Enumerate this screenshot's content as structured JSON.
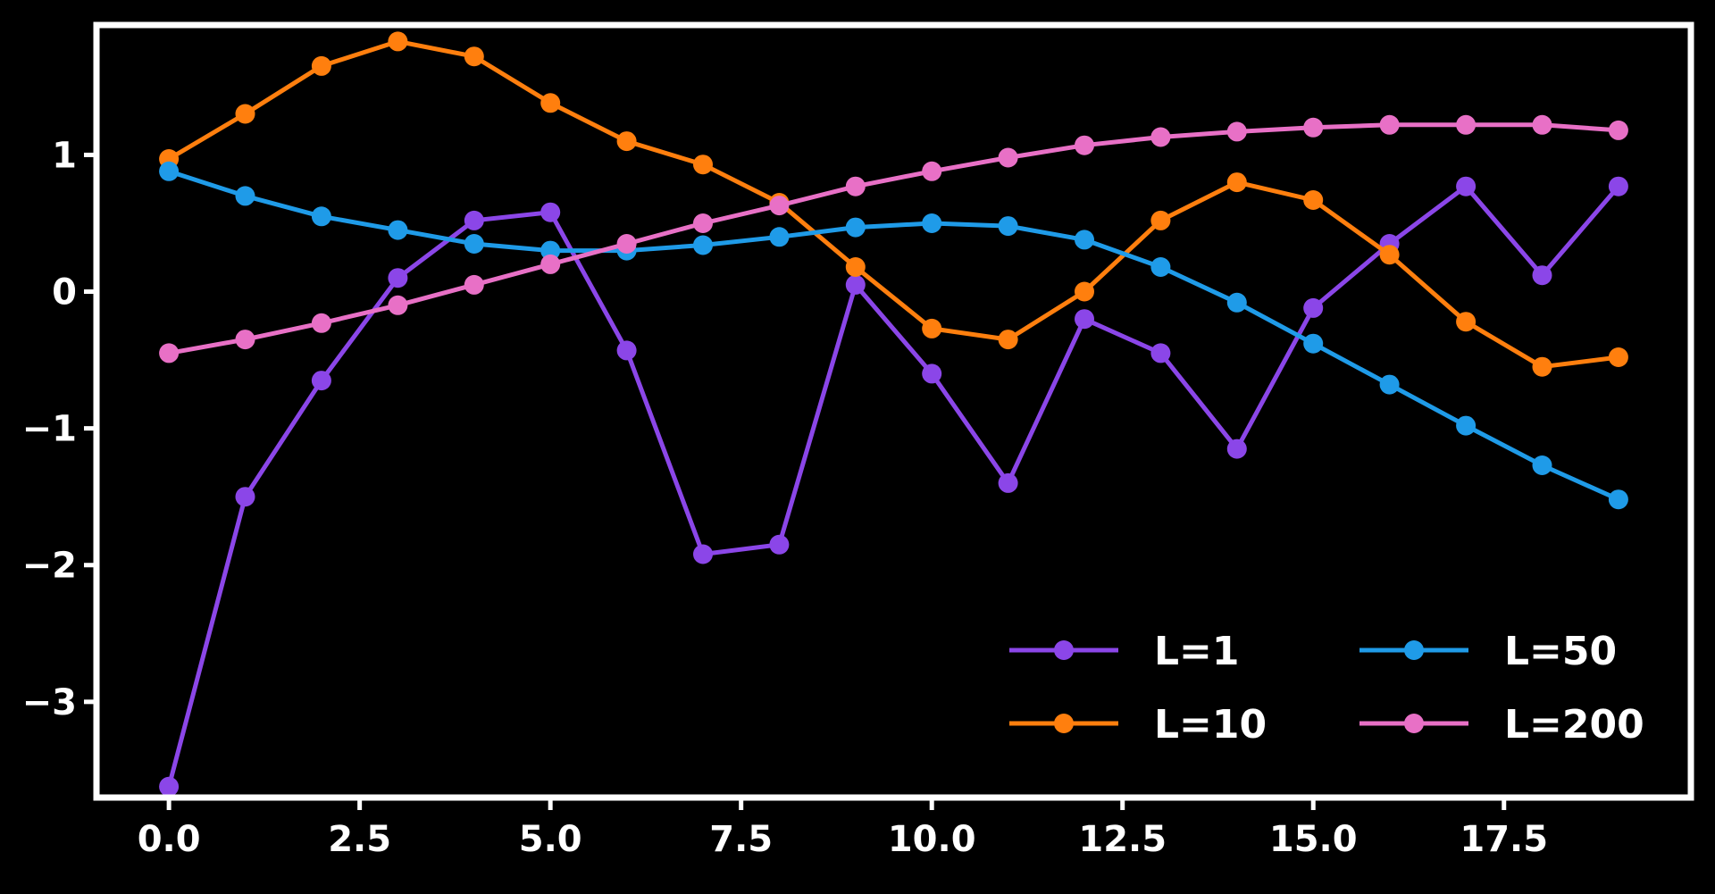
{
  "chart_data": {
    "type": "line",
    "title": "",
    "xlabel": "",
    "ylabel": "",
    "xlim": [
      -0.95,
      19.95
    ],
    "ylim": [
      -3.7,
      1.95
    ],
    "x_ticks": [
      0.0,
      2.5,
      5.0,
      7.5,
      10.0,
      12.5,
      15.0,
      17.5
    ],
    "x_tick_labels": [
      "0.0",
      "2.5",
      "5.0",
      "7.5",
      "10.0",
      "12.5",
      "15.0",
      "17.5"
    ],
    "y_ticks": [
      -3,
      -2,
      -1,
      0,
      1
    ],
    "y_tick_labels": [
      "−3",
      "−2",
      "−1",
      "0",
      "1"
    ],
    "grid": false,
    "legend": {
      "placement": "lower-right",
      "columns": 2
    },
    "x": [
      0,
      1,
      2,
      3,
      4,
      5,
      6,
      7,
      8,
      9,
      10,
      11,
      12,
      13,
      14,
      15,
      16,
      17,
      18,
      19
    ],
    "series": [
      {
        "name": "L=1",
        "color": "#8b46e8",
        "values": [
          -3.62,
          -1.5,
          -0.65,
          0.1,
          0.52,
          0.58,
          -0.43,
          -1.92,
          -1.85,
          0.05,
          -0.6,
          -1.4,
          -0.2,
          -0.45,
          -1.15,
          -0.12,
          0.35,
          0.77,
          0.12,
          0.77
        ]
      },
      {
        "name": "L=10",
        "color": "#ff7f0e",
        "values": [
          0.97,
          1.3,
          1.65,
          1.83,
          1.72,
          1.38,
          1.1,
          0.93,
          0.65,
          0.18,
          -0.27,
          -0.35,
          0.0,
          0.52,
          0.8,
          0.67,
          0.27,
          -0.22,
          -0.55,
          -0.48
        ]
      },
      {
        "name": "L=50",
        "color": "#1f9be8",
        "values": [
          0.88,
          0.7,
          0.55,
          0.45,
          0.35,
          0.3,
          0.3,
          0.34,
          0.4,
          0.47,
          0.5,
          0.48,
          0.38,
          0.18,
          -0.08,
          -0.38,
          -0.68,
          -0.98,
          -1.27,
          -1.52
        ]
      },
      {
        "name": "L=200",
        "color": "#e870c6",
        "values": [
          -0.45,
          -0.35,
          -0.23,
          -0.1,
          0.05,
          0.2,
          0.35,
          0.5,
          0.63,
          0.77,
          0.88,
          0.98,
          1.07,
          1.13,
          1.17,
          1.2,
          1.22,
          1.22,
          1.22,
          1.18
        ]
      }
    ]
  }
}
